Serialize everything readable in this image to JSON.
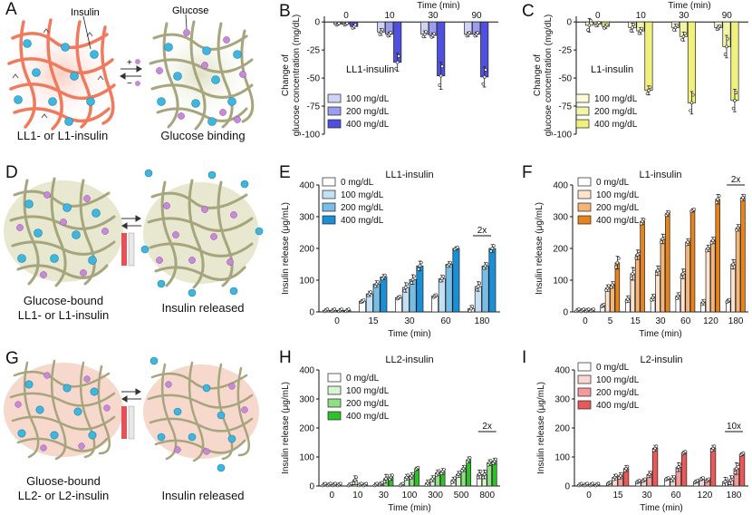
{
  "panels": {
    "A": {
      "letter": "A",
      "caption_left": "LL1- or L1-insulin",
      "caption_right": "Glucose binding",
      "label_insulin": "Insulin",
      "label_glucose": "Glucose",
      "arrow_plus": "+",
      "arrow_minus": "−"
    },
    "D": {
      "letter": "D",
      "caption_left_1": "Glucose-bound",
      "caption_left_2": "LL1- or L1-insulin",
      "caption_right": "Insulin released"
    },
    "G": {
      "letter": "G",
      "caption_left_1": "Gluose-bound",
      "caption_left_2": "LL2- or L2-insulin",
      "caption_right": "Insulin released"
    }
  },
  "colors": {
    "net_red": "#f07a5e",
    "net_olive": "#a7a57e",
    "insulin": "#3fb6dd",
    "glucose": "#c88ad8",
    "glow_red": "#fbd3c8",
    "glow_olive": "#e7e8cf"
  },
  "chart_data": [
    {
      "id": "B",
      "letter": "B",
      "type": "bar",
      "title": "",
      "inner_label": "LL1-insulin",
      "top_axis_label": "Time (min)",
      "categories": [
        "0",
        "10",
        "30",
        "90"
      ],
      "ylabel": "Change of glucose concentration (mg/dL)",
      "ylim": [
        -100,
        5
      ],
      "yticks": [
        0,
        -25,
        -50,
        -75,
        -100
      ],
      "series": [
        {
          "name": "100 mg/dL",
          "color": "#d2d2f7",
          "values": [
            -2,
            -9,
            -11,
            -11
          ]
        },
        {
          "name": "200 mg/dL",
          "color": "#9c9cf0",
          "values": [
            -2,
            -11,
            -12,
            -11
          ]
        },
        {
          "name": "400 mg/dL",
          "color": "#5050e0",
          "values": [
            -4,
            -36,
            -48,
            -49
          ]
        }
      ],
      "errors": [
        [
          1,
          3,
          3,
          2
        ],
        [
          1,
          2,
          2,
          2
        ],
        [
          2,
          8,
          12,
          9
        ]
      ]
    },
    {
      "id": "C",
      "letter": "C",
      "type": "bar",
      "title": "",
      "inner_label": "L1-insulin",
      "top_axis_label": "Time (min)",
      "categories": [
        "0",
        "10",
        "30",
        "90"
      ],
      "ylabel": "Change of glucose concentration (mg/dL)",
      "ylim": [
        -100,
        5
      ],
      "yticks": [
        0,
        -25,
        -50,
        -75,
        -100
      ],
      "series": [
        {
          "name": "100 mg/dL",
          "color": "#fbfbd8",
          "values": [
            -3,
            -5,
            -5,
            -5
          ]
        },
        {
          "name": "200 mg/dL",
          "color": "#f2f4a6",
          "values": [
            -2,
            -8,
            -13,
            -22
          ]
        },
        {
          "name": "400 mg/dL",
          "color": "#f0f07c",
          "values": [
            -4,
            -61,
            -72,
            -70
          ]
        }
      ],
      "errors": [
        [
          6,
          4,
          3,
          2
        ],
        [
          2,
          3,
          4,
          10
        ],
        [
          2,
          4,
          10,
          10
        ]
      ]
    },
    {
      "id": "E",
      "letter": "E",
      "type": "bar",
      "title": "LL1-insulin",
      "categories": [
        "0",
        "15",
        "30",
        "60",
        "180"
      ],
      "xlabel": "Time (min)",
      "ylabel": "Insulin release (μg/mL)",
      "ylim": [
        0,
        400
      ],
      "yticks": [
        0,
        100,
        200,
        300,
        400
      ],
      "annotation": "2x",
      "series": [
        {
          "name": "0 mg/dL",
          "color": "#ffffff",
          "values": [
            5,
            34,
            45,
            50,
            10
          ]
        },
        {
          "name": "100 mg/dL",
          "color": "#c3e0f4",
          "values": [
            5,
            57,
            77,
            105,
            80
          ]
        },
        {
          "name": "200 mg/dL",
          "color": "#76bde8",
          "values": [
            5,
            88,
            102,
            150,
            145
          ]
        },
        {
          "name": "400 mg/dL",
          "color": "#1a8fd6",
          "values": [
            5,
            110,
            145,
            200,
            200
          ]
        }
      ],
      "errors": [
        [
          5,
          5,
          5,
          5,
          10
        ],
        [
          5,
          8,
          15,
          10,
          15
        ],
        [
          5,
          10,
          15,
          8,
          10
        ],
        [
          5,
          8,
          15,
          5,
          12
        ]
      ]
    },
    {
      "id": "F",
      "letter": "F",
      "type": "bar",
      "title": "L1-insulin",
      "categories": [
        "0",
        "5",
        "15",
        "30",
        "60",
        "120",
        "180"
      ],
      "xlabel": "Time (min)",
      "ylabel": "Insulin release (μg/mL)",
      "ylim": [
        0,
        400
      ],
      "yticks": [
        0,
        100,
        200,
        300,
        400
      ],
      "annotation": "2x",
      "series": [
        {
          "name": "0 mg/dL",
          "color": "#ffffff",
          "values": [
            5,
            20,
            40,
            45,
            50,
            30,
            35
          ]
        },
        {
          "name": "100 mg/dL",
          "color": "#fde3cc",
          "values": [
            5,
            75,
            120,
            130,
            120,
            200,
            150
          ]
        },
        {
          "name": "200 mg/dL",
          "color": "#f6b476",
          "values": [
            5,
            85,
            180,
            230,
            220,
            225,
            265
          ]
        },
        {
          "name": "400 mg/dL",
          "color": "#e8821a",
          "values": [
            5,
            155,
            285,
            310,
            320,
            355,
            360
          ]
        }
      ],
      "errors": [
        [
          5,
          5,
          10,
          10,
          10,
          8,
          5
        ],
        [
          5,
          10,
          20,
          15,
          15,
          10,
          15
        ],
        [
          5,
          10,
          15,
          15,
          10,
          10,
          10
        ],
        [
          5,
          20,
          10,
          8,
          5,
          15,
          10
        ]
      ]
    },
    {
      "id": "H",
      "letter": "H",
      "type": "bar",
      "title": "LL2-insulin",
      "categories": [
        "0",
        "10",
        "30",
        "100",
        "300",
        "500",
        "800"
      ],
      "xlabel": "Time (min)",
      "ylabel": "Insulin release (μg/mL)",
      "ylim": [
        0,
        400
      ],
      "yticks": [
        0,
        100,
        200,
        300,
        400
      ],
      "annotation": "2x",
      "series": [
        {
          "name": "0 mg/dL",
          "color": "#ffffff",
          "values": [
            5,
            5,
            5,
            5,
            10,
            20,
            40
          ]
        },
        {
          "name": "100 mg/dL",
          "color": "#d7f5d0",
          "values": [
            5,
            20,
            8,
            30,
            25,
            40,
            40
          ]
        },
        {
          "name": "200 mg/dL",
          "color": "#8fe082",
          "values": [
            5,
            5,
            25,
            35,
            45,
            60,
            80
          ]
        },
        {
          "name": "400 mg/dL",
          "color": "#2fc12a",
          "values": [
            5,
            5,
            30,
            60,
            50,
            90,
            85
          ]
        }
      ],
      "errors": [
        [
          5,
          5,
          5,
          5,
          10,
          10,
          15
        ],
        [
          5,
          15,
          5,
          10,
          10,
          10,
          15
        ],
        [
          5,
          5,
          15,
          10,
          10,
          10,
          10
        ],
        [
          5,
          5,
          10,
          5,
          10,
          10,
          10
        ]
      ]
    },
    {
      "id": "I",
      "letter": "I",
      "type": "bar",
      "title": "L2-insulin",
      "categories": [
        "0",
        "15",
        "30",
        "60",
        "120",
        "180"
      ],
      "xlabel": "Time (min)",
      "ylabel": "Insulin release (μg/mL)",
      "ylim": [
        0,
        400
      ],
      "yticks": [
        0,
        100,
        200,
        300,
        400
      ],
      "annotation": "10x",
      "series": [
        {
          "name": "0 mg/dL",
          "color": "#ffffff",
          "values": [
            5,
            10,
            15,
            25,
            15,
            15
          ]
        },
        {
          "name": "100 mg/dL",
          "color": "#fbd4d4",
          "values": [
            5,
            30,
            20,
            25,
            25,
            20
          ]
        },
        {
          "name": "200 mg/dL",
          "color": "#f39a9a",
          "values": [
            5,
            35,
            40,
            65,
            20,
            60
          ]
        },
        {
          "name": "400 mg/dL",
          "color": "#e85a5a",
          "values": [
            5,
            60,
            130,
            115,
            130,
            110
          ]
        }
      ],
      "errors": [
        [
          5,
          5,
          5,
          5,
          5,
          15
        ],
        [
          5,
          10,
          5,
          10,
          5,
          15
        ],
        [
          5,
          10,
          10,
          15,
          5,
          20
        ],
        [
          5,
          10,
          10,
          5,
          10,
          5
        ]
      ]
    }
  ]
}
